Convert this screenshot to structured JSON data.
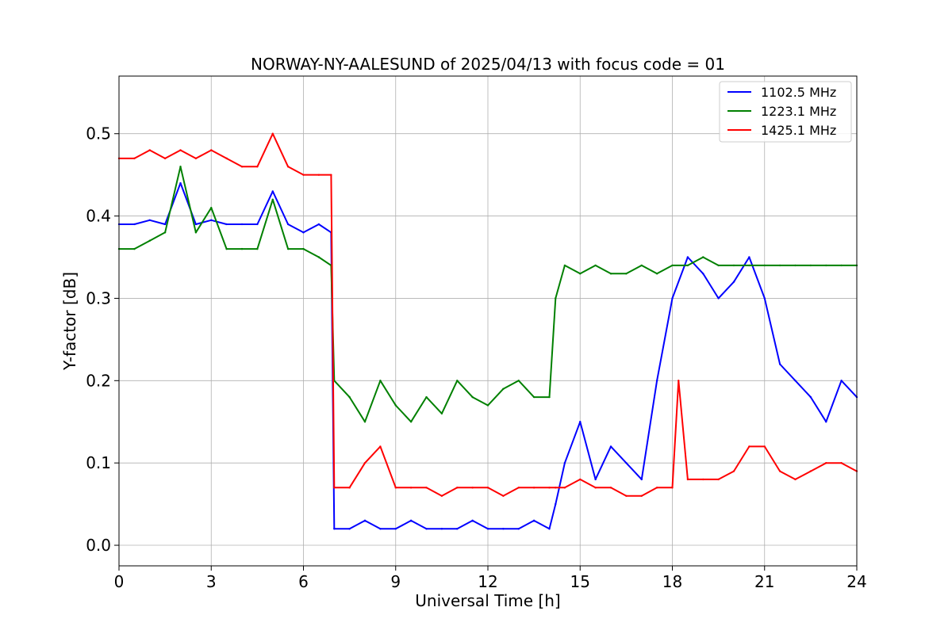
{
  "chart_data": {
    "type": "line",
    "title": "NORWAY-NY-AALESUND of 2025/04/13 with focus code = 01",
    "xlabel": "Universal Time [h]",
    "ylabel": "Y-factor [dB]",
    "xlim": [
      0,
      24
    ],
    "ylim": [
      -0.025,
      0.57
    ],
    "xticks": [
      0,
      3,
      6,
      9,
      12,
      15,
      18,
      21,
      24
    ],
    "yticks": [
      0.0,
      0.1,
      0.2,
      0.3,
      0.4,
      0.5
    ],
    "xtick_labels": [
      "0",
      "3",
      "6",
      "9",
      "12",
      "15",
      "18",
      "21",
      "24"
    ],
    "ytick_labels": [
      "0.0",
      "0.1",
      "0.2",
      "0.3",
      "0.4",
      "0.5"
    ],
    "grid": true,
    "legend_position": "top-right",
    "series": [
      {
        "name": "1102.5 MHz",
        "color": "#0000ff",
        "x": [
          0,
          0.5,
          1,
          1.5,
          2,
          2.5,
          3,
          3.5,
          4,
          4.5,
          5,
          5.5,
          6,
          6.5,
          6.9,
          7.0,
          7.5,
          8,
          8.5,
          9,
          9.5,
          10,
          10.5,
          11,
          11.5,
          12,
          12.5,
          13,
          13.5,
          14,
          14.2,
          14.5,
          15,
          15.5,
          16,
          16.5,
          17,
          17.5,
          18,
          18.5,
          19,
          19.5,
          20,
          20.5,
          21,
          21.5,
          22,
          22.5,
          23,
          23.5,
          24
        ],
        "y": [
          0.39,
          0.39,
          0.395,
          0.39,
          0.44,
          0.39,
          0.395,
          0.39,
          0.39,
          0.39,
          0.43,
          0.39,
          0.38,
          0.39,
          0.38,
          0.02,
          0.02,
          0.03,
          0.02,
          0.02,
          0.03,
          0.02,
          0.02,
          0.02,
          0.03,
          0.02,
          0.02,
          0.02,
          0.03,
          0.02,
          0.05,
          0.1,
          0.15,
          0.08,
          0.12,
          0.1,
          0.08,
          0.2,
          0.3,
          0.35,
          0.33,
          0.3,
          0.32,
          0.35,
          0.3,
          0.22,
          0.2,
          0.18,
          0.15,
          0.2,
          0.18
        ]
      },
      {
        "name": "1223.1 MHz",
        "color": "#008000",
        "x": [
          0,
          0.5,
          1,
          1.5,
          2,
          2.5,
          3,
          3.5,
          4,
          4.5,
          5,
          5.5,
          6,
          6.5,
          6.9,
          7.0,
          7.5,
          8,
          8.5,
          9,
          9.5,
          10,
          10.5,
          11,
          11.5,
          12,
          12.5,
          13,
          13.5,
          14,
          14.2,
          14.5,
          15,
          15.5,
          16,
          16.5,
          17,
          17.5,
          18,
          18.5,
          19,
          19.5,
          20,
          20.5,
          21,
          21.5,
          22,
          22.5,
          23,
          23.5,
          24
        ],
        "y": [
          0.36,
          0.36,
          0.37,
          0.38,
          0.46,
          0.38,
          0.41,
          0.36,
          0.36,
          0.36,
          0.42,
          0.36,
          0.36,
          0.35,
          0.34,
          0.2,
          0.18,
          0.15,
          0.2,
          0.17,
          0.15,
          0.18,
          0.16,
          0.2,
          0.18,
          0.17,
          0.19,
          0.2,
          0.18,
          0.18,
          0.3,
          0.34,
          0.33,
          0.34,
          0.33,
          0.33,
          0.34,
          0.33,
          0.34,
          0.34,
          0.35,
          0.34,
          0.34,
          0.34,
          0.34,
          0.34,
          0.34,
          0.34,
          0.34,
          0.34,
          0.34
        ]
      },
      {
        "name": "1425.1 MHz",
        "color": "#ff0000",
        "x": [
          0,
          0.5,
          1,
          1.5,
          2,
          2.5,
          3,
          3.5,
          4,
          4.5,
          5,
          5.5,
          6,
          6.5,
          6.9,
          7.0,
          7.5,
          8,
          8.5,
          9,
          9.5,
          10,
          10.5,
          11,
          11.5,
          12,
          12.5,
          13,
          13.5,
          14,
          14.2,
          14.5,
          15,
          15.5,
          16,
          16.5,
          17,
          17.5,
          18,
          18.2,
          18.5,
          19,
          19.5,
          20,
          20.5,
          21,
          21.5,
          22,
          22.5,
          23,
          23.5,
          24
        ],
        "y": [
          0.47,
          0.47,
          0.48,
          0.47,
          0.48,
          0.47,
          0.48,
          0.47,
          0.46,
          0.46,
          0.5,
          0.46,
          0.45,
          0.45,
          0.45,
          0.07,
          0.07,
          0.1,
          0.12,
          0.07,
          0.07,
          0.07,
          0.06,
          0.07,
          0.07,
          0.07,
          0.06,
          0.07,
          0.07,
          0.07,
          0.07,
          0.07,
          0.08,
          0.07,
          0.07,
          0.06,
          0.06,
          0.07,
          0.07,
          0.2,
          0.08,
          0.08,
          0.08,
          0.09,
          0.12,
          0.12,
          0.09,
          0.08,
          0.09,
          0.1,
          0.1,
          0.09
        ]
      }
    ]
  }
}
